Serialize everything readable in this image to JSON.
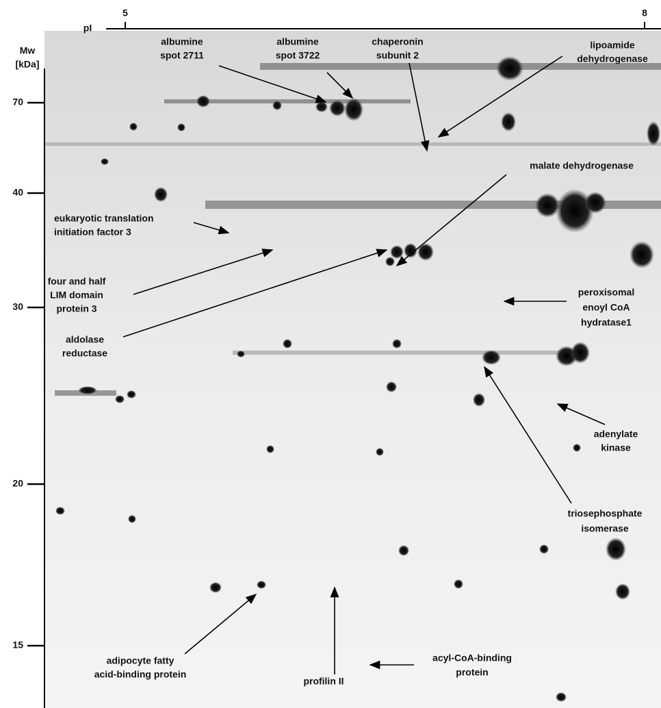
{
  "pi_axis": {
    "label": "pI",
    "ticks": [
      "5",
      "8"
    ]
  },
  "mw_axis": {
    "label": [
      "Mw",
      "[kDa]"
    ],
    "ticks": [
      "70",
      "40",
      "30",
      "20",
      "15"
    ]
  },
  "annotations": [
    {
      "lines": [
        "albumine",
        "spot 2711"
      ]
    },
    {
      "lines": [
        "albumine",
        "spot 3722"
      ]
    },
    {
      "lines": [
        "chaperonin",
        "subunit 2"
      ]
    },
    {
      "lines": [
        "lipoamide",
        "dehydrogenase"
      ]
    },
    {
      "lines": [
        "malate dehydrogenase"
      ]
    },
    {
      "lines": [
        "eukaryotic translation",
        "initiation factor 3"
      ]
    },
    {
      "lines": [
        "four and half",
        "LIM domain",
        "protein 3"
      ]
    },
    {
      "lines": [
        "aldolase",
        "reductase"
      ]
    },
    {
      "lines": [
        "peroxisomal",
        "enoyl CoA",
        "hydratase1"
      ]
    },
    {
      "lines": [
        "adenylate",
        "kinase"
      ]
    },
    {
      "lines": [
        "triosephosphate",
        "isomerase"
      ]
    },
    {
      "lines": [
        "adipocyte fatty",
        "acid-binding protein"
      ]
    },
    {
      "lines": [
        "profilin II"
      ]
    },
    {
      "lines": [
        "acyl-CoA-binding",
        "protein"
      ]
    }
  ]
}
